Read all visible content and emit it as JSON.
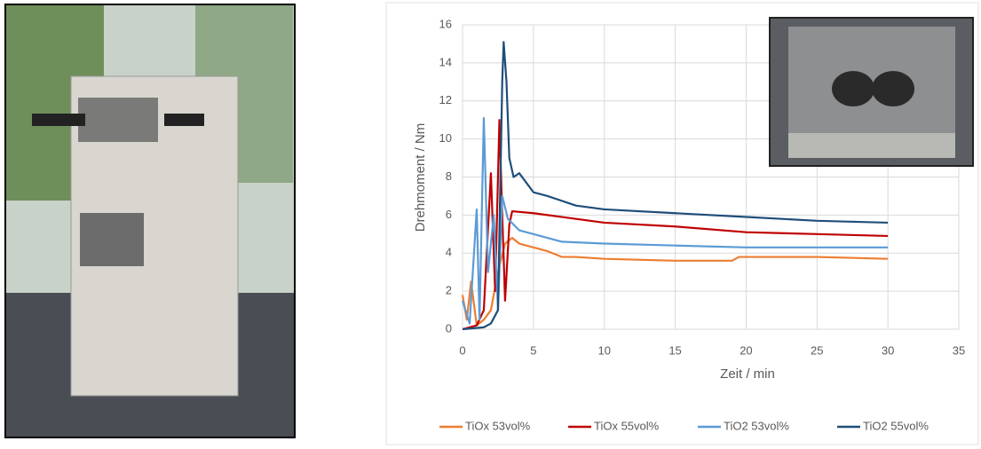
{
  "chart_data": {
    "type": "line",
    "xlabel": "Zeit / min",
    "ylabel": "Drehmoment / Nm",
    "xlim": [
      0,
      35
    ],
    "xticks": [
      0,
      5,
      10,
      15,
      20,
      25,
      30,
      35
    ],
    "ylim": [
      0,
      16
    ],
    "yticks": [
      0,
      2,
      4,
      6,
      8,
      10,
      12,
      14,
      16
    ],
    "grid": true,
    "legend": "bottom",
    "series": [
      {
        "name": "TiOx 53vol%",
        "color": "#ed7d31",
        "x": [
          0,
          0.3,
          0.6,
          1,
          1.5,
          2,
          2.5,
          3,
          3.5,
          4,
          5,
          6,
          7,
          8,
          10,
          15,
          19,
          19.5,
          20,
          25,
          30
        ],
        "values": [
          1.8,
          0.5,
          2.5,
          0.2,
          0.5,
          1,
          3,
          4.5,
          4.8,
          4.5,
          4.3,
          4.1,
          3.8,
          3.8,
          3.7,
          3.6,
          3.6,
          3.8,
          3.8,
          3.8,
          3.7
        ]
      },
      {
        "name": "TiOx 55vol%",
        "color": "#c00000",
        "x": [
          0,
          1,
          1.5,
          2,
          2.3,
          2.6,
          2.8,
          3,
          3.3,
          3.5,
          5,
          8,
          10,
          15,
          20,
          25,
          30
        ],
        "values": [
          0,
          0.2,
          1,
          8.2,
          2,
          11,
          6,
          1.5,
          5.5,
          6.2,
          6.1,
          5.8,
          5.6,
          5.4,
          5.1,
          5.0,
          4.9
        ]
      },
      {
        "name": "TiO2 53vol%",
        "color": "#5b9bd5",
        "x": [
          0,
          0.5,
          1,
          1.2,
          1.5,
          1.8,
          2.2,
          2.5,
          2.8,
          3.2,
          4,
          5,
          7,
          10,
          15,
          20,
          25,
          30
        ],
        "values": [
          1.5,
          0.3,
          6.3,
          0.5,
          11.1,
          3,
          6,
          1,
          7,
          5.8,
          5.2,
          5,
          4.6,
          4.5,
          4.4,
          4.3,
          4.3,
          4.3
        ]
      },
      {
        "name": "TiO2 55vol%",
        "color": "#1f4e79",
        "x": [
          0,
          1.5,
          2,
          2.5,
          2.8,
          2.9,
          3.1,
          3.3,
          3.6,
          4,
          5,
          6,
          8,
          10,
          15,
          20,
          25,
          30
        ],
        "values": [
          0,
          0.1,
          0.3,
          1,
          13,
          15.1,
          13,
          9,
          8,
          8.2,
          7.2,
          7,
          6.5,
          6.3,
          6.1,
          5.9,
          5.7,
          5.6
        ]
      }
    ]
  }
}
